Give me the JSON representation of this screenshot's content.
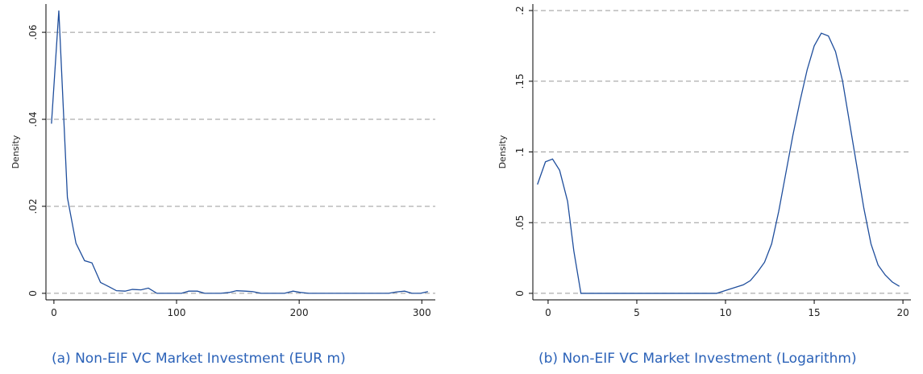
{
  "chart_data": [
    {
      "type": "line",
      "ylabel": "Density",
      "caption": "(a) Non-EIF VC Market Investment (EUR m)",
      "x": [
        -2,
        4,
        11,
        18,
        25,
        31,
        38,
        45,
        51,
        58,
        64,
        71,
        77,
        84,
        90,
        97,
        104,
        110,
        117,
        123,
        130,
        136,
        143,
        149,
        156,
        162,
        169,
        175,
        182,
        188,
        195,
        201,
        208,
        214,
        221,
        227,
        234,
        240,
        247,
        253,
        260,
        266,
        273,
        279,
        286,
        292,
        299,
        305
      ],
      "series": [
        {
          "name": "Density",
          "color": "#1f4e9c",
          "values": [
            0.039,
            0.065,
            0.022,
            0.0115,
            0.0075,
            0.007,
            0.0025,
            0.0015,
            0.0006,
            0.0005,
            0.0009,
            0.0008,
            0.0012,
            0,
            0,
            0,
            0,
            0.0005,
            0.0005,
            0,
            0,
            0,
            0.0002,
            0.0006,
            0.0005,
            0.0004,
            0,
            0,
            0,
            0,
            0.0005,
            0.0002,
            0,
            0,
            0,
            0,
            0,
            0,
            0,
            0,
            0,
            0,
            0,
            0.0003,
            0.0005,
            0,
            0,
            0.0004
          ]
        }
      ],
      "xlim": [
        -6.5,
        311
      ],
      "ylim": [
        -0.0015,
        0.0665
      ],
      "xticks": [
        0,
        100,
        200,
        300
      ],
      "yticks": [
        0,
        {
          "value": 0.02,
          "label": ".02"
        },
        {
          "value": 0.04,
          "label": ".04"
        },
        {
          "value": 0.06,
          "label": ".06"
        }
      ],
      "grid": true
    },
    {
      "type": "line",
      "ylabel": "Density",
      "caption": "(b) Non-EIF VC Market Investment (Logarithm)",
      "x": [
        -0.6,
        -0.15,
        0.25,
        0.65,
        1.1,
        1.45,
        1.85,
        3,
        5,
        7,
        9,
        9.5,
        10,
        10.5,
        11,
        11.4,
        11.8,
        12.2,
        12.6,
        13,
        13.4,
        13.8,
        14.2,
        14.6,
        15,
        15.4,
        15.8,
        16.2,
        16.6,
        17,
        17.4,
        17.8,
        18.2,
        18.6,
        19,
        19.4,
        19.8
      ],
      "series": [
        {
          "name": "Density",
          "color": "#1f4e9c",
          "values": [
            0.077,
            0.093,
            0.095,
            0.087,
            0.065,
            0.03,
            0,
            0,
            0,
            0,
            0,
            0,
            0.002,
            0.004,
            0.006,
            0.009,
            0.015,
            0.022,
            0.035,
            0.058,
            0.085,
            0.112,
            0.136,
            0.158,
            0.175,
            0.184,
            0.182,
            0.171,
            0.15,
            0.12,
            0.09,
            0.06,
            0.035,
            0.02,
            0.013,
            0.008,
            0.005
          ]
        }
      ],
      "xlim": [
        -0.86,
        20.45
      ],
      "ylim": [
        -0.0046,
        0.2046
      ],
      "xticks": [
        0,
        5,
        10,
        15,
        20
      ],
      "yticks": [
        0,
        {
          "value": 0.05,
          "label": ".05"
        },
        {
          "value": 0.1,
          "label": ".1"
        },
        {
          "value": 0.15,
          "label": ".15"
        },
        {
          "value": 0.2,
          "label": ".2"
        }
      ],
      "grid": true
    }
  ]
}
